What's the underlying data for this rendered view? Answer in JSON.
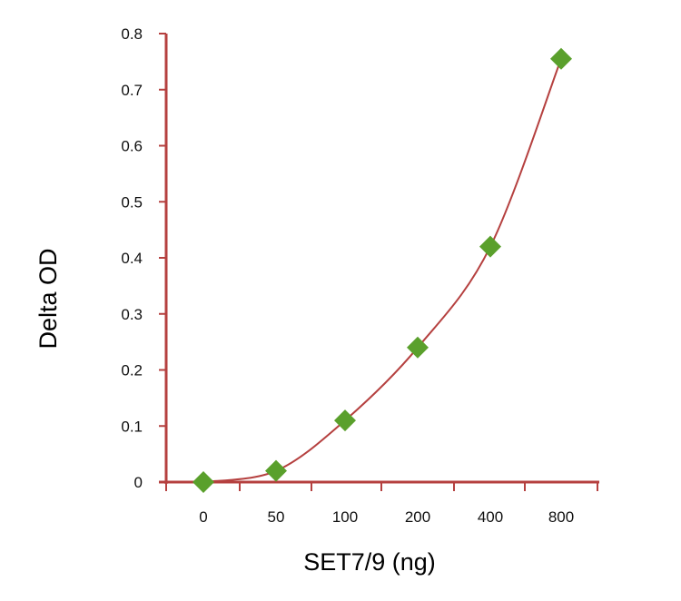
{
  "chart_data": {
    "type": "line",
    "title": "",
    "xlabel": "SET7/9 (ng)",
    "ylabel": "Delta OD",
    "categories": [
      "0",
      "50",
      "100",
      "200",
      "400",
      "800"
    ],
    "series": [
      {
        "values": [
          0.0,
          0.02,
          0.11,
          0.24,
          0.42,
          0.755
        ]
      }
    ],
    "yticks": [
      "0",
      "0.1",
      "0.2",
      "0.3",
      "0.4",
      "0.5",
      "0.6",
      "0.7",
      "0.8"
    ],
    "ylim": [
      0,
      0.8
    ],
    "grid": false,
    "legend": "none",
    "colors": {
      "axis": "#b5403f",
      "line": "#b5403f",
      "marker": "#5aa02c"
    },
    "marker": "diamond"
  }
}
